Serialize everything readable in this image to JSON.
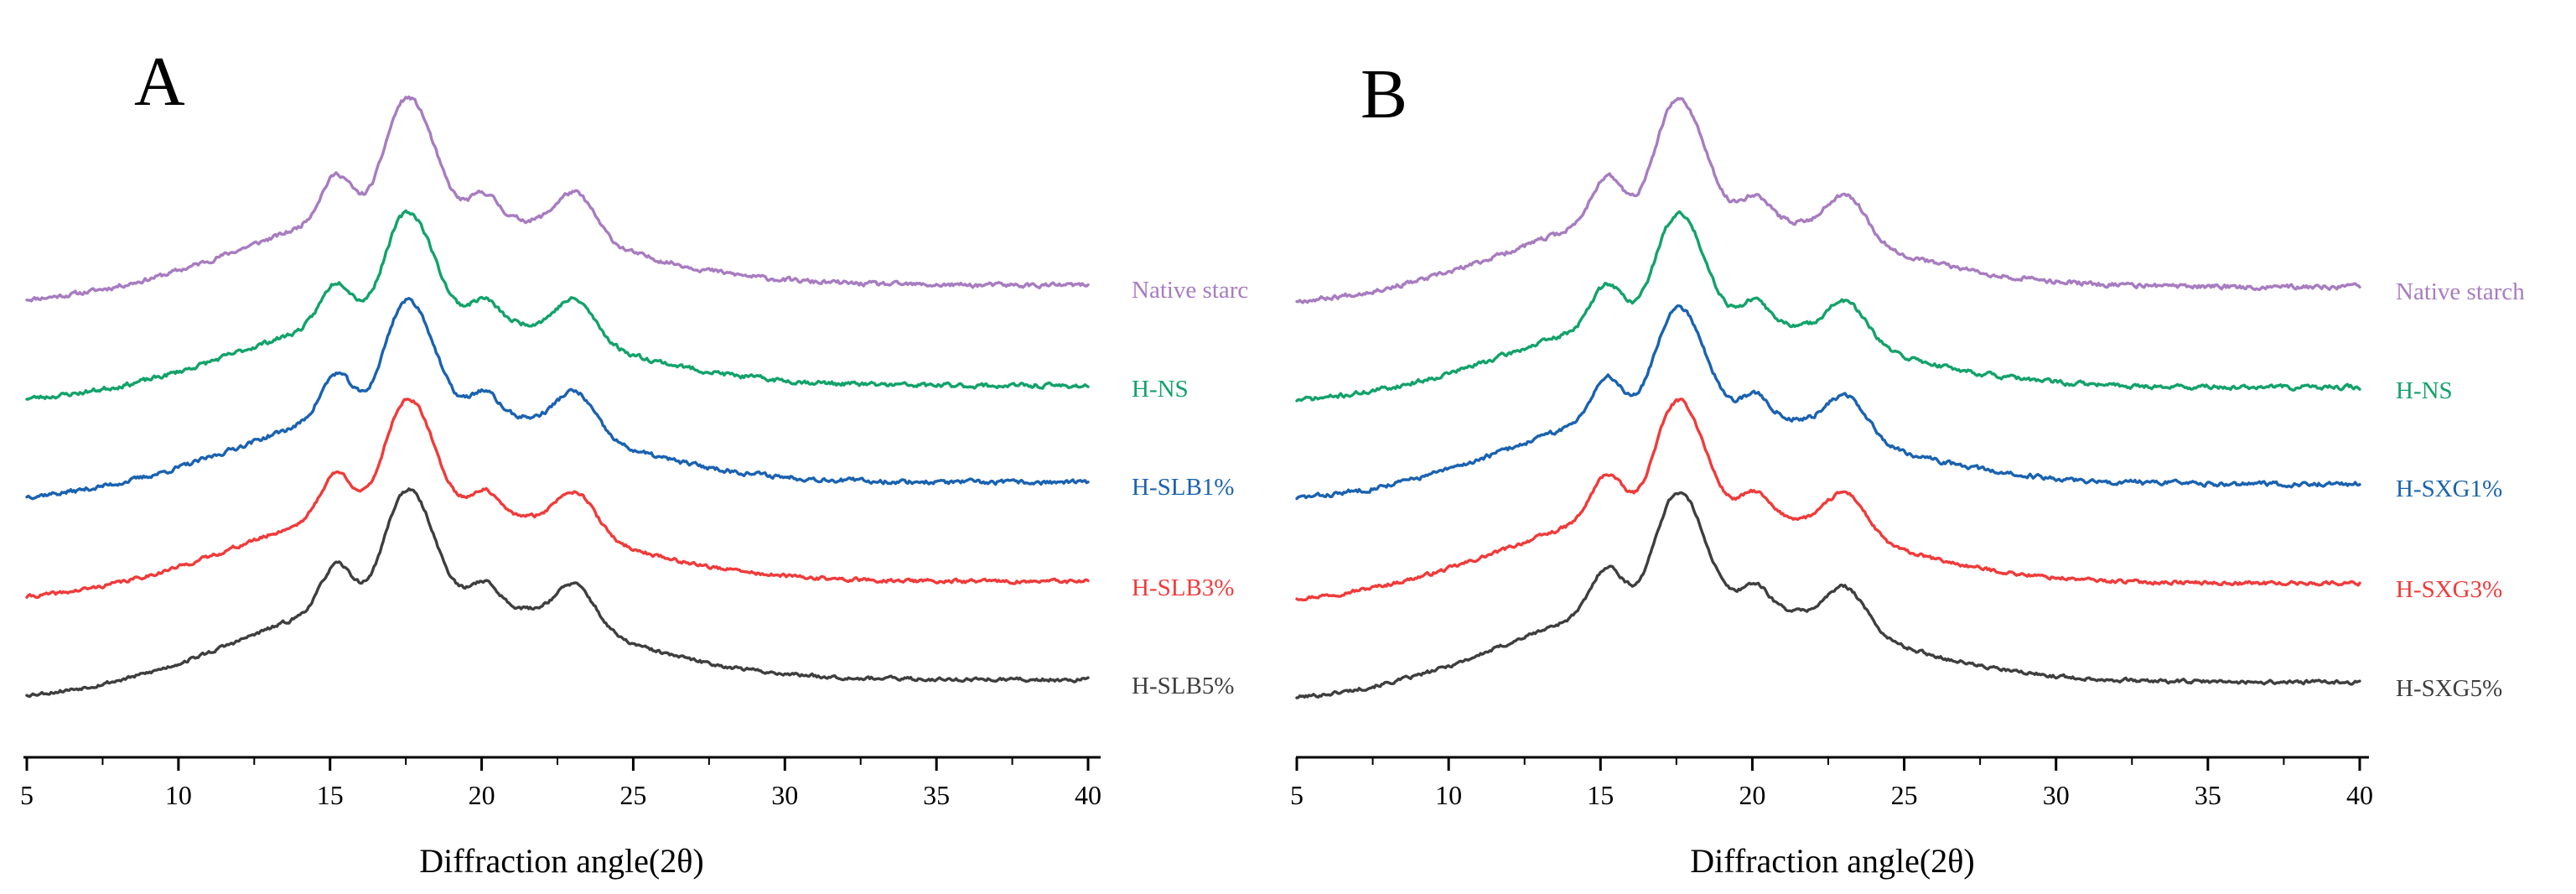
{
  "chart_data": [
    {
      "panel": "A",
      "type": "line",
      "xlabel": "Diffraction angle(2θ)",
      "ylabel": "",
      "xlim": [
        5,
        40
      ],
      "x_ticks": [
        "5",
        "10",
        "15",
        "20",
        "25",
        "30",
        "35",
        "40"
      ],
      "x_minor_step": 2.5,
      "y_axis_shown": false,
      "legend": "inline-right",
      "peaks": [
        {
          "c": 15.2,
          "w": 0.5,
          "h": 0.55
        },
        {
          "c": 17.2,
          "w": 0.55,
          "h": 0.85
        },
        {
          "c": 18.0,
          "w": 0.6,
          "h": 0.9
        },
        {
          "c": 20.1,
          "w": 0.4,
          "h": 0.25
        },
        {
          "c": 23.1,
          "w": 0.65,
          "h": 0.55
        }
      ],
      "series": [
        {
          "name": "Native starc",
          "color": "#A77CC0",
          "amorph": 1.05,
          "tail": 0.22,
          "peak_scale": 1.05,
          "noise": 0.05,
          "seed": 11
        },
        {
          "name": "H-NS",
          "color": "#12A26A",
          "amorph": 1.0,
          "tail": 0.2,
          "peak_scale": 0.95,
          "noise": 0.05,
          "seed": 23
        },
        {
          "name": "H-SLB1%",
          "color": "#1A62B0",
          "amorph": 1.05,
          "tail": 0.22,
          "peak_scale": 1.0,
          "noise": 0.05,
          "seed": 37
        },
        {
          "name": "H-SLB3%",
          "color": "#F03A3A",
          "amorph": 1.05,
          "tail": 0.24,
          "peak_scale": 1.0,
          "noise": 0.04,
          "seed": 41
        },
        {
          "name": "H-SLB5%",
          "color": "#3E3E3E",
          "amorph": 1.15,
          "tail": 0.24,
          "peak_scale": 1.0,
          "noise": 0.04,
          "seed": 53
        }
      ]
    },
    {
      "panel": "B",
      "type": "line",
      "xlabel": "Diffraction angle(2θ)",
      "ylabel": "",
      "xlim": [
        5,
        40
      ],
      "x_ticks": [
        "5",
        "10",
        "15",
        "20",
        "25",
        "30",
        "35",
        "40"
      ],
      "x_minor_step": 2.5,
      "y_axis_shown": false,
      "legend": "inline-right",
      "peaks": [
        {
          "c": 15.2,
          "w": 0.5,
          "h": 0.55
        },
        {
          "c": 17.2,
          "w": 0.55,
          "h": 0.85
        },
        {
          "c": 18.0,
          "w": 0.6,
          "h": 0.9
        },
        {
          "c": 20.1,
          "w": 0.4,
          "h": 0.25
        },
        {
          "c": 23.1,
          "w": 0.65,
          "h": 0.55
        }
      ],
      "series": [
        {
          "name": "Native starch",
          "color": "#A77CC0",
          "amorph": 1.05,
          "tail": 0.22,
          "peak_scale": 1.05,
          "noise": 0.05,
          "seed": 67
        },
        {
          "name": "H-NS",
          "color": "#12A26A",
          "amorph": 1.0,
          "tail": 0.2,
          "peak_scale": 0.95,
          "noise": 0.05,
          "seed": 71
        },
        {
          "name": "H-SXG1%",
          "color": "#1A62B0",
          "amorph": 1.05,
          "tail": 0.22,
          "peak_scale": 0.95,
          "noise": 0.05,
          "seed": 83
        },
        {
          "name": "H-SXG3%",
          "color": "#F03A3A",
          "amorph": 1.05,
          "tail": 0.24,
          "peak_scale": 1.0,
          "noise": 0.04,
          "seed": 97
        },
        {
          "name": "H-SXG5%",
          "color": "#3E3E3E",
          "amorph": 1.15,
          "tail": 0.24,
          "peak_scale": 1.0,
          "noise": 0.04,
          "seed": 101
        }
      ]
    }
  ]
}
